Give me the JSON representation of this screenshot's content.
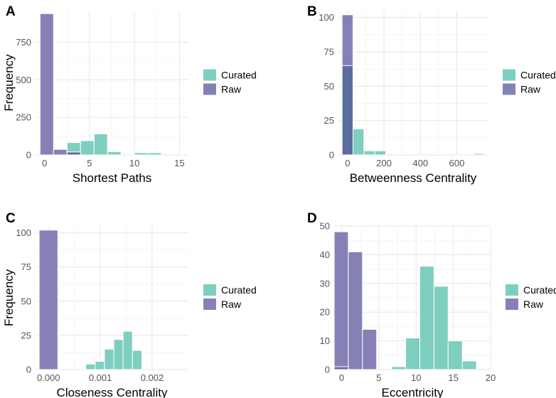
{
  "colors": {
    "Curated": "#7ecfbf",
    "Raw": "#8681b5",
    "overlap": "#5c6f9c"
  },
  "chart_data": [
    {
      "id": "A",
      "type": "bar",
      "panel_label": "A",
      "xlabel": "Shortest Paths",
      "ylabel": "Frequency",
      "xlim": [
        -1,
        16
      ],
      "ylim": [
        0,
        960
      ],
      "xticks": [
        "0",
        "5",
        "10",
        "15"
      ],
      "xtick_values": [
        0,
        5,
        10,
        15
      ],
      "yticks": [
        "0",
        "250",
        "500",
        "750"
      ],
      "ytick_values": [
        0,
        250,
        500,
        750
      ],
      "legend": [
        "Curated",
        "Raw"
      ],
      "series": [
        {
          "name": "Raw",
          "bins": [
            [
              -0.5,
              1.0,
              940
            ],
            [
              1.0,
              2.5,
              37
            ],
            [
              2.5,
              4.0,
              20
            ]
          ]
        },
        {
          "name": "Curated",
          "bins": [
            [
              2.5,
              4.0,
              82
            ],
            [
              4.0,
              5.5,
              95
            ],
            [
              5.5,
              7.0,
              140
            ],
            [
              7.0,
              8.5,
              22
            ],
            [
              8.5,
              10.0,
              0
            ],
            [
              10.0,
              11.5,
              15
            ],
            [
              11.5,
              13.0,
              15
            ]
          ]
        }
      ]
    },
    {
      "id": "B",
      "type": "bar",
      "panel_label": "B",
      "xlabel": "Betweenness Centrality",
      "ylabel": "",
      "xlim": [
        -50,
        770
      ],
      "ylim": [
        0,
        105
      ],
      "xticks": [
        "0",
        "200",
        "400",
        "600"
      ],
      "xtick_values": [
        0,
        200,
        400,
        600
      ],
      "yticks": [
        "0",
        "25",
        "50",
        "75",
        "100"
      ],
      "ytick_values": [
        0,
        25,
        50,
        75,
        100
      ],
      "legend": [
        "Curated",
        "Raw"
      ],
      "series": [
        {
          "name": "Raw",
          "bins": [
            [
              -30,
              30,
              102
            ]
          ]
        },
        {
          "name": "Curated",
          "bins": [
            [
              -30,
              30,
              65
            ],
            [
              30,
              90,
              19
            ],
            [
              90,
              150,
              3
            ],
            [
              150,
              210,
              3
            ],
            [
              690,
              750,
              1
            ]
          ]
        }
      ]
    },
    {
      "id": "C",
      "type": "bar",
      "panel_label": "C",
      "xlabel": "Closeness Centrality",
      "ylabel": "Frequency",
      "xlim": [
        -0.00025,
        0.0027
      ],
      "ylim": [
        0,
        105
      ],
      "xticks": [
        "0.000",
        "0.001",
        "0.002"
      ],
      "xtick_values": [
        0,
        0.001,
        0.002
      ],
      "yticks": [
        "0",
        "25",
        "50",
        "75",
        "100"
      ],
      "ytick_values": [
        0,
        25,
        50,
        75,
        100
      ],
      "legend": [
        "Curated",
        "Raw"
      ],
      "series": [
        {
          "name": "Raw",
          "bins": [
            [
              -0.00018,
              0.00018,
              102
            ]
          ]
        },
        {
          "name": "Curated",
          "bins": [
            [
              0.00072,
              0.0009,
              4
            ],
            [
              0.0009,
              0.00108,
              6
            ],
            [
              0.00108,
              0.00126,
              15
            ],
            [
              0.00126,
              0.00144,
              22
            ],
            [
              0.00144,
              0.00162,
              28
            ],
            [
              0.00162,
              0.0018,
              14
            ],
            [
              0.0018,
              0.00198,
              0
            ]
          ]
        }
      ]
    },
    {
      "id": "D",
      "type": "bar",
      "panel_label": "D",
      "xlabel": "Eccentricity",
      "ylabel": "",
      "xlim": [
        -1,
        20
      ],
      "ylim": [
        0,
        50
      ],
      "xticks": [
        "0",
        "5",
        "10",
        "15",
        "20"
      ],
      "xtick_values": [
        0,
        5,
        10,
        15,
        20
      ],
      "yticks": [
        "0",
        "10",
        "20",
        "30",
        "40",
        "50"
      ],
      "ytick_values": [
        0,
        10,
        20,
        30,
        40,
        50
      ],
      "legend": [
        "Curated",
        "Raw"
      ],
      "series": [
        {
          "name": "Raw",
          "bins": [
            [
              -1.0,
              0.9,
              48
            ],
            [
              0.9,
              2.8,
              41
            ],
            [
              2.8,
              4.7,
              14
            ]
          ]
        },
        {
          "name": "Curated",
          "bins": [
            [
              -1.0,
              0.9,
              1
            ],
            [
              6.7,
              8.6,
              1
            ],
            [
              8.6,
              10.5,
              11
            ],
            [
              10.5,
              12.4,
              36
            ],
            [
              12.4,
              14.3,
              29
            ],
            [
              14.3,
              16.2,
              10
            ],
            [
              16.2,
              18.1,
              3
            ]
          ]
        }
      ]
    }
  ]
}
